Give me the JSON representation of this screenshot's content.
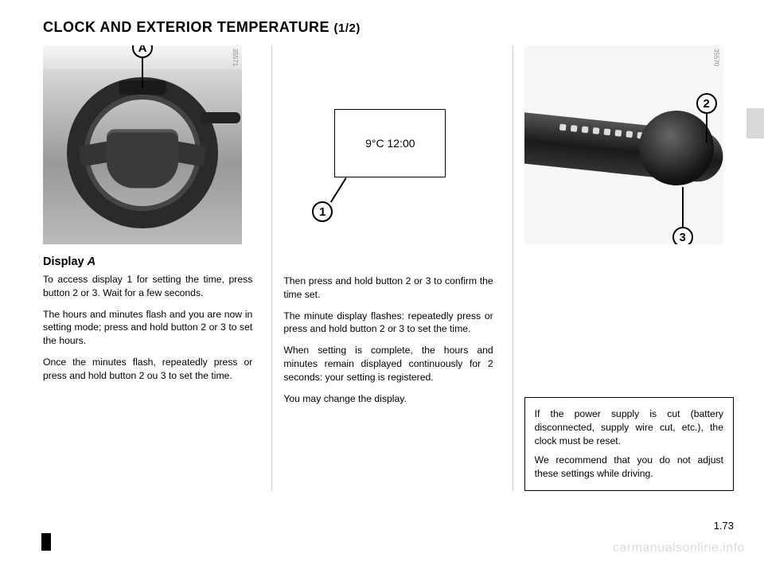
{
  "page": {
    "title_main": "CLOCK AND EXTERIOR TEMPERATURE",
    "title_sub": "(1/2)",
    "page_number": "1.73",
    "watermark": "carmanualsonline.info",
    "fonts": {
      "title_pt": 18,
      "body_pt": 12,
      "subhead_pt": 14
    },
    "colors": {
      "text": "#000000",
      "rule": "#cccccc",
      "bg": "#ffffff",
      "watermark": "#dcdcdc"
    }
  },
  "col1": {
    "img_number": "35571",
    "callout_A": "A",
    "subhead_prefix": "Display ",
    "subhead_ital": "A",
    "para1": "To access display 1 for setting the time, press button 2 or 3. Wait for a few seconds.",
    "para2": "The hours and minutes flash and you are now in setting mode; press and hold button 2 or 3 to set the hours.",
    "para3": "Once the minutes flash, repeatedly press or press and hold button 2 ou 3 to set the time."
  },
  "col2": {
    "display_value": "9°C 12:00",
    "callout_1": "1",
    "para1": "Then press and hold button 2 or 3 to confirm the time set.",
    "para2": "The minute display flashes: repeatedly press or press and hold button 2 or 3 to set the time.",
    "para3": "When setting is complete, the hours and minutes remain displayed continuously for 2 seconds: your setting is registered.",
    "para4": "You may change the display."
  },
  "col3": {
    "img_number": "35570",
    "callout_2": "2",
    "callout_3": "3",
    "note_p1": "If the power supply is cut (battery disconnected, supply wire cut, etc.), the clock must be reset.",
    "note_p2": "We recommend that you do not adjust these settings while driving."
  }
}
